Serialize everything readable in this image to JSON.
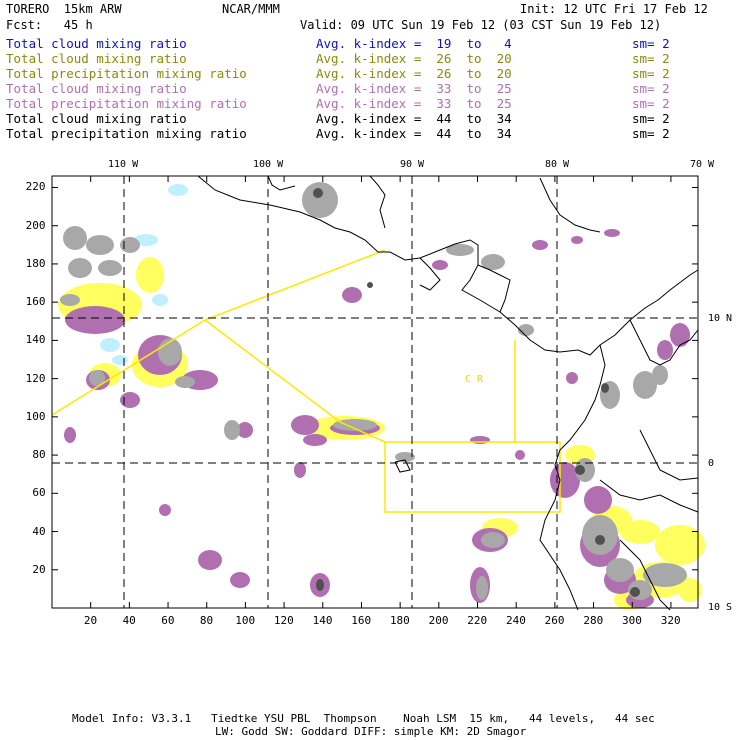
{
  "header": {
    "model": "TORERO  15km ARW",
    "center": "NCAR/MMM",
    "init": "Init: 12 UTC Fri 17 Feb 12",
    "forecast": "Fcst:   45 h",
    "valid": "Valid: 09 UTC Sun 19 Feb 12 (03 CST Sun 19 Feb 12)"
  },
  "legend": [
    {
      "label": "Total cloud mixing ratio",
      "kindex": "Avg. k-index =  19  to   4",
      "sm": "sm= 2",
      "color": "#1010c0"
    },
    {
      "label": "Total cloud mixing ratio",
      "kindex": "Avg. k-index =  26  to  20",
      "sm": "sm= 2",
      "color": "#8a8a10"
    },
    {
      "label": "Total precipitation mixing ratio",
      "kindex": "Avg. k-index =  26  to  20",
      "sm": "sm= 2",
      "color": "#8a8a10"
    },
    {
      "label": "Total cloud mixing ratio",
      "kindex": "Avg. k-index =  33  to  25",
      "sm": "sm= 2",
      "color": "#b070b0"
    },
    {
      "label": "Total precipitation mixing ratio",
      "kindex": "Avg. k-index =  33  to  25",
      "sm": "sm= 2",
      "color": "#b070b0"
    },
    {
      "label": "Total cloud mixing ratio",
      "kindex": "Avg. k-index =  44  to  34",
      "sm": "sm= 2",
      "color": "#000000"
    },
    {
      "label": "Total precipitation mixing ratio",
      "kindex": "Avg. k-index =  44  to  34",
      "sm": "sm= 2",
      "color": "#000000"
    }
  ],
  "map": {
    "lon_labels": [
      "110 W",
      "100 W",
      "90 W",
      "80 W",
      "70 W"
    ],
    "lat_labels": [
      "10 N",
      "0",
      "10 S"
    ],
    "x_ticks": [
      "20",
      "40",
      "60",
      "80",
      "100",
      "120",
      "140",
      "160",
      "180",
      "200",
      "220",
      "240",
      "260",
      "280",
      "300",
      "320"
    ],
    "y_ticks": [
      "20",
      "40",
      "60",
      "80",
      "100",
      "120",
      "140",
      "160",
      "180",
      "200",
      "220"
    ],
    "x_range": [
      0,
      334
    ],
    "y_range": [
      0,
      226
    ],
    "region_label": "C  R",
    "region_label_color": "#e8d800",
    "colors": {
      "gray_light": "#a8a8a8",
      "gray_mid": "#8c8c8c",
      "gray_dark": "#505050",
      "purple": "#b070b0",
      "yellow": "#ffff60",
      "cyan": "#c0f0ff",
      "boundary_yellow": "#ffe800",
      "coast": "#000000"
    }
  },
  "footer": {
    "line1": "Model Info: V3.3.1   Tiedtke YSU PBL  Thompson    Noah LSM  15 km,   44 levels,   44 sec",
    "line2": "LW: Godd SW: Goddard DIFF: simple KM: 2D Smagor"
  }
}
